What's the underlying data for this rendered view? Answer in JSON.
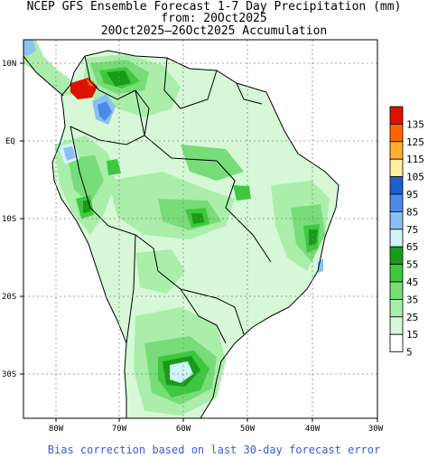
{
  "title": {
    "line1": "NCEP GFS Ensemble Forecast 1-7 Day Precipitation (mm)",
    "line2": "from: 20Oct2025",
    "line3": "20Oct2025–26Oct2025 Accumulation"
  },
  "axes": {
    "lat_labels": [
      "10N",
      "EQ",
      "10S",
      "20S",
      "30S"
    ],
    "lon_labels": [
      "80W",
      "70W",
      "60W",
      "50W",
      "40W",
      "30W"
    ]
  },
  "legend": {
    "unit": "mm",
    "thresholds": [
      "135",
      "125",
      "115",
      "105",
      "95",
      "85",
      "75",
      "65",
      "55",
      "45",
      "35",
      "25",
      "15",
      "5"
    ],
    "colors": [
      "#dd1100",
      "#ff6600",
      "#ffb030",
      "#fff0a0",
      "#1e5ed0",
      "#4d8ae8",
      "#8cc0f4",
      "#d0f4f8",
      "#169c16",
      "#3fc83f",
      "#78dc78",
      "#aaeeaa",
      "#d6f8d6",
      "#ffffff"
    ]
  },
  "footer": "Bias correction based on last 30-day forecast error"
}
